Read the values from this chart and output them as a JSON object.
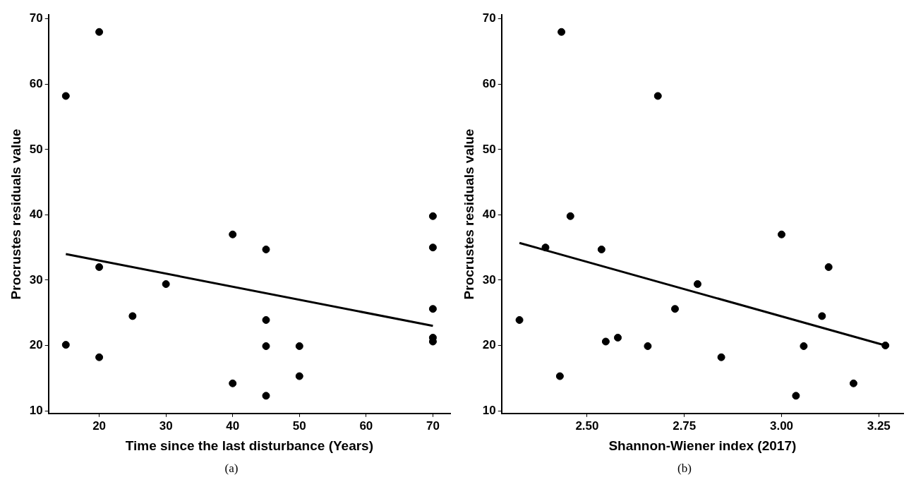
{
  "chart_data": [
    {
      "type": "scatter",
      "xlabel": "Time since the last disturbance (Years)",
      "ylabel": "Procrustes residuals value",
      "xlim": [
        12.4,
        72.6
      ],
      "ylim": [
        9.6,
        70.6
      ],
      "xticks": [
        20,
        30,
        40,
        50,
        60,
        70
      ],
      "yticks": [
        10,
        20,
        30,
        40,
        50,
        60,
        70
      ],
      "grid": false,
      "annotations": [
        "(a)"
      ],
      "series": [
        {
          "marker": "circle",
          "color": "#000000",
          "x": [
            15,
            15,
            20,
            20,
            20,
            25,
            30,
            40,
            40,
            45,
            45,
            45,
            45,
            50,
            50,
            70,
            70,
            70,
            70,
            70
          ],
          "values": [
            58.2,
            20.1,
            68,
            32,
            18.2,
            24.5,
            29.4,
            37,
            14.2,
            34.7,
            23.9,
            19.9,
            12.3,
            19.9,
            15.3,
            39.8,
            35,
            25.6,
            21.2,
            20.6
          ]
        },
        {
          "type": "line",
          "marker": "none",
          "color": "#000000",
          "x": [
            15,
            70
          ],
          "values": [
            34,
            23
          ]
        }
      ]
    },
    {
      "type": "scatter",
      "xlabel": "Shannon-Wiener index (2017)",
      "ylabel": "Procrustes residuals value",
      "xlim": [
        2.28,
        3.313
      ],
      "ylim": [
        9.6,
        70.6
      ],
      "xticks": [
        {
          "value": 2.5,
          "label": "2.50"
        },
        2.75,
        {
          "value": 3,
          "label": "3.00"
        },
        3.25
      ],
      "yticks": [
        10,
        20,
        30,
        40,
        50,
        60,
        70
      ],
      "grid": false,
      "annotations": [
        "(b)"
      ],
      "series": [
        {
          "marker": "circle",
          "color": "#000000",
          "x": [
            2.326,
            2.393,
            2.434,
            2.43,
            2.457,
            2.537,
            2.548,
            2.579,
            2.656,
            2.682,
            2.726,
            2.784,
            2.845,
            3.0,
            3.037,
            3.057,
            3.104,
            3.121,
            3.185,
            3.267
          ],
          "values": [
            23.9,
            35,
            68,
            15.3,
            39.8,
            34.7,
            20.6,
            21.2,
            19.9,
            58.2,
            25.6,
            29.4,
            18.2,
            37,
            12.3,
            19.9,
            24.5,
            32,
            14.2,
            20
          ]
        },
        {
          "type": "line",
          "marker": "none",
          "color": "#000000",
          "x": [
            2.326,
            3.267
          ],
          "values": [
            35.7,
            20
          ]
        }
      ]
    }
  ]
}
